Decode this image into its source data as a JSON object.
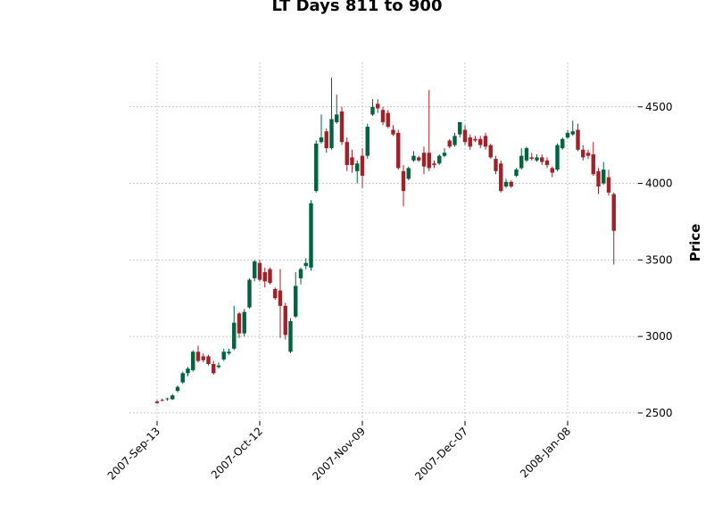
{
  "chart_data": {
    "type": "candlestick",
    "title": "LT Days 811 to 900",
    "y_label": "Price",
    "categories": [
      "2007-Sep-13",
      null,
      null,
      null,
      null,
      null,
      null,
      null,
      null,
      null,
      null,
      null,
      null,
      null,
      null,
      null,
      null,
      null,
      null,
      null,
      "2007-Oct-12",
      null,
      null,
      null,
      null,
      null,
      null,
      null,
      null,
      null,
      null,
      null,
      null,
      null,
      null,
      null,
      null,
      null,
      null,
      null,
      "2007-Nov-09",
      null,
      null,
      null,
      null,
      null,
      null,
      null,
      null,
      null,
      null,
      null,
      null,
      null,
      null,
      null,
      null,
      null,
      null,
      null,
      "2007-Dec-07",
      null,
      null,
      null,
      null,
      null,
      null,
      null,
      null,
      null,
      null,
      null,
      null,
      null,
      null,
      null,
      null,
      null,
      null,
      null,
      "2008-Jan-08",
      null,
      null,
      null,
      null,
      null,
      null,
      null,
      null,
      null
    ],
    "open": [
      2575,
      2585,
      2590,
      2590,
      2645,
      2700,
      2760,
      2780,
      2900,
      2870,
      2870,
      2820,
      2800,
      2850,
      2890,
      2920,
      3150,
      3020,
      3190,
      3380,
      3480,
      3420,
      3440,
      3310,
      3300,
      3200,
      2900,
      3130,
      3380,
      3460,
      3450,
      3950,
      4270,
      4340,
      4230,
      4400,
      4470,
      4270,
      4170,
      4080,
      4180,
      4180,
      4450,
      4520,
      4480,
      4460,
      4350,
      4330,
      4080,
      4030,
      4150,
      4170,
      4200,
      4200,
      4130,
      4130,
      4180,
      4280,
      4250,
      4320,
      4350,
      4300,
      4290,
      4290,
      4310,
      4250,
      4160,
      4130,
      3980,
      4010,
      4050,
      4100,
      4150,
      4170,
      4150,
      4170,
      4150,
      4100,
      4090,
      4230,
      4300,
      4320,
      4350,
      4220,
      4200,
      4190,
      4080,
      4000,
      4040,
      3930
    ],
    "high": [
      2585,
      2595,
      2600,
      2625,
      2680,
      2770,
      2800,
      2910,
      2940,
      2890,
      2880,
      2840,
      2830,
      2920,
      2920,
      3200,
      3160,
      3180,
      3380,
      3500,
      3500,
      3450,
      3450,
      3320,
      3440,
      3220,
      3120,
      3420,
      3450,
      3510,
      3890,
      4280,
      4450,
      4360,
      4690,
      4580,
      4500,
      4300,
      4220,
      4150,
      4230,
      4390,
      4550,
      4550,
      4500,
      4480,
      4380,
      4350,
      4120,
      4110,
      4210,
      4180,
      4240,
      4610,
      4150,
      4190,
      4230,
      4290,
      4330,
      4400,
      4380,
      4320,
      4310,
      4310,
      4330,
      4260,
      4180,
      4150,
      4030,
      4020,
      4100,
      4230,
      4240,
      4200,
      4190,
      4190,
      4170,
      4110,
      4260,
      4300,
      4350,
      4410,
      4390,
      4250,
      4220,
      4270,
      4100,
      4140,
      4090,
      3940
    ],
    "low": [
      2560,
      2575,
      2580,
      2585,
      2635,
      2690,
      2740,
      2770,
      2830,
      2830,
      2810,
      2750,
      2790,
      2840,
      2880,
      2910,
      2990,
      3000,
      3180,
      3360,
      3360,
      3320,
      3340,
      3240,
      2990,
      2980,
      2890,
      3120,
      3340,
      3440,
      3430,
      3940,
      4260,
      4200,
      4220,
      4390,
      4250,
      4080,
      4070,
      4000,
      3970,
      4160,
      4440,
      4460,
      4380,
      4360,
      4310,
      4090,
      3850,
      4020,
      4140,
      4140,
      4060,
      4080,
      4100,
      4120,
      4170,
      4230,
      4240,
      4300,
      4250,
      4220,
      4270,
      4230,
      4220,
      4160,
      4060,
      3940,
      3970,
      3970,
      4040,
      4090,
      4140,
      4150,
      4140,
      4120,
      4100,
      4040,
      4080,
      4220,
      4290,
      4310,
      4210,
      4150,
      4160,
      4050,
      3930,
      3990,
      3920,
      3470
    ],
    "close": [
      2565,
      2580,
      2595,
      2615,
      2670,
      2760,
      2790,
      2900,
      2840,
      2845,
      2820,
      2760,
      2810,
      2900,
      2900,
      3090,
      3020,
      3160,
      3370,
      3490,
      3370,
      3360,
      3350,
      3250,
      3200,
      3010,
      3100,
      3330,
      3440,
      3480,
      3870,
      4260,
      4300,
      4230,
      4420,
      4450,
      4270,
      4120,
      4120,
      4130,
      4050,
      4370,
      4500,
      4490,
      4400,
      4370,
      4320,
      4100,
      3950,
      4100,
      4180,
      4150,
      4110,
      4100,
      4120,
      4180,
      4200,
      4240,
      4310,
      4400,
      4270,
      4240,
      4280,
      4250,
      4240,
      4170,
      4080,
      3950,
      4010,
      3980,
      4090,
      4180,
      4230,
      4160,
      4170,
      4140,
      4120,
      4070,
      4250,
      4290,
      4330,
      4340,
      4220,
      4170,
      4180,
      4060,
      3980,
      4090,
      3940,
      3690
    ],
    "up_color": "#006340",
    "down_color": "#a02128",
    "ylim": [
      2447,
      4790
    ],
    "yticks": [
      2500,
      3000,
      3500,
      4000,
      4500
    ],
    "grid": true
  }
}
